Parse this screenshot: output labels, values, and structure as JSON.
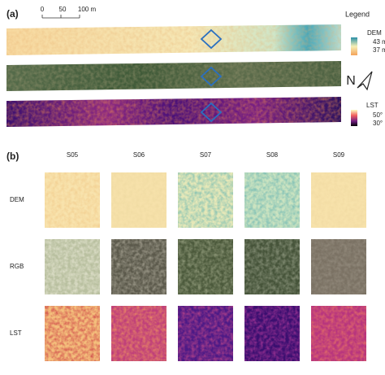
{
  "panel_a": {
    "label": "(a)",
    "scale_bar": [
      "0",
      "50",
      "100 m"
    ],
    "legend_title": "Legend",
    "dem_legend": {
      "title": "DEM",
      "high": "43 m",
      "low": "37 m"
    },
    "north": "N",
    "lst_legend": {
      "title": "LST",
      "high": "50°",
      "low": "30°"
    }
  },
  "panel_b": {
    "label": "(b)",
    "columns": [
      "S05",
      "S06",
      "S07",
      "S08",
      "S09"
    ],
    "rows": [
      "DEM",
      "RGB",
      "LST"
    ]
  }
}
